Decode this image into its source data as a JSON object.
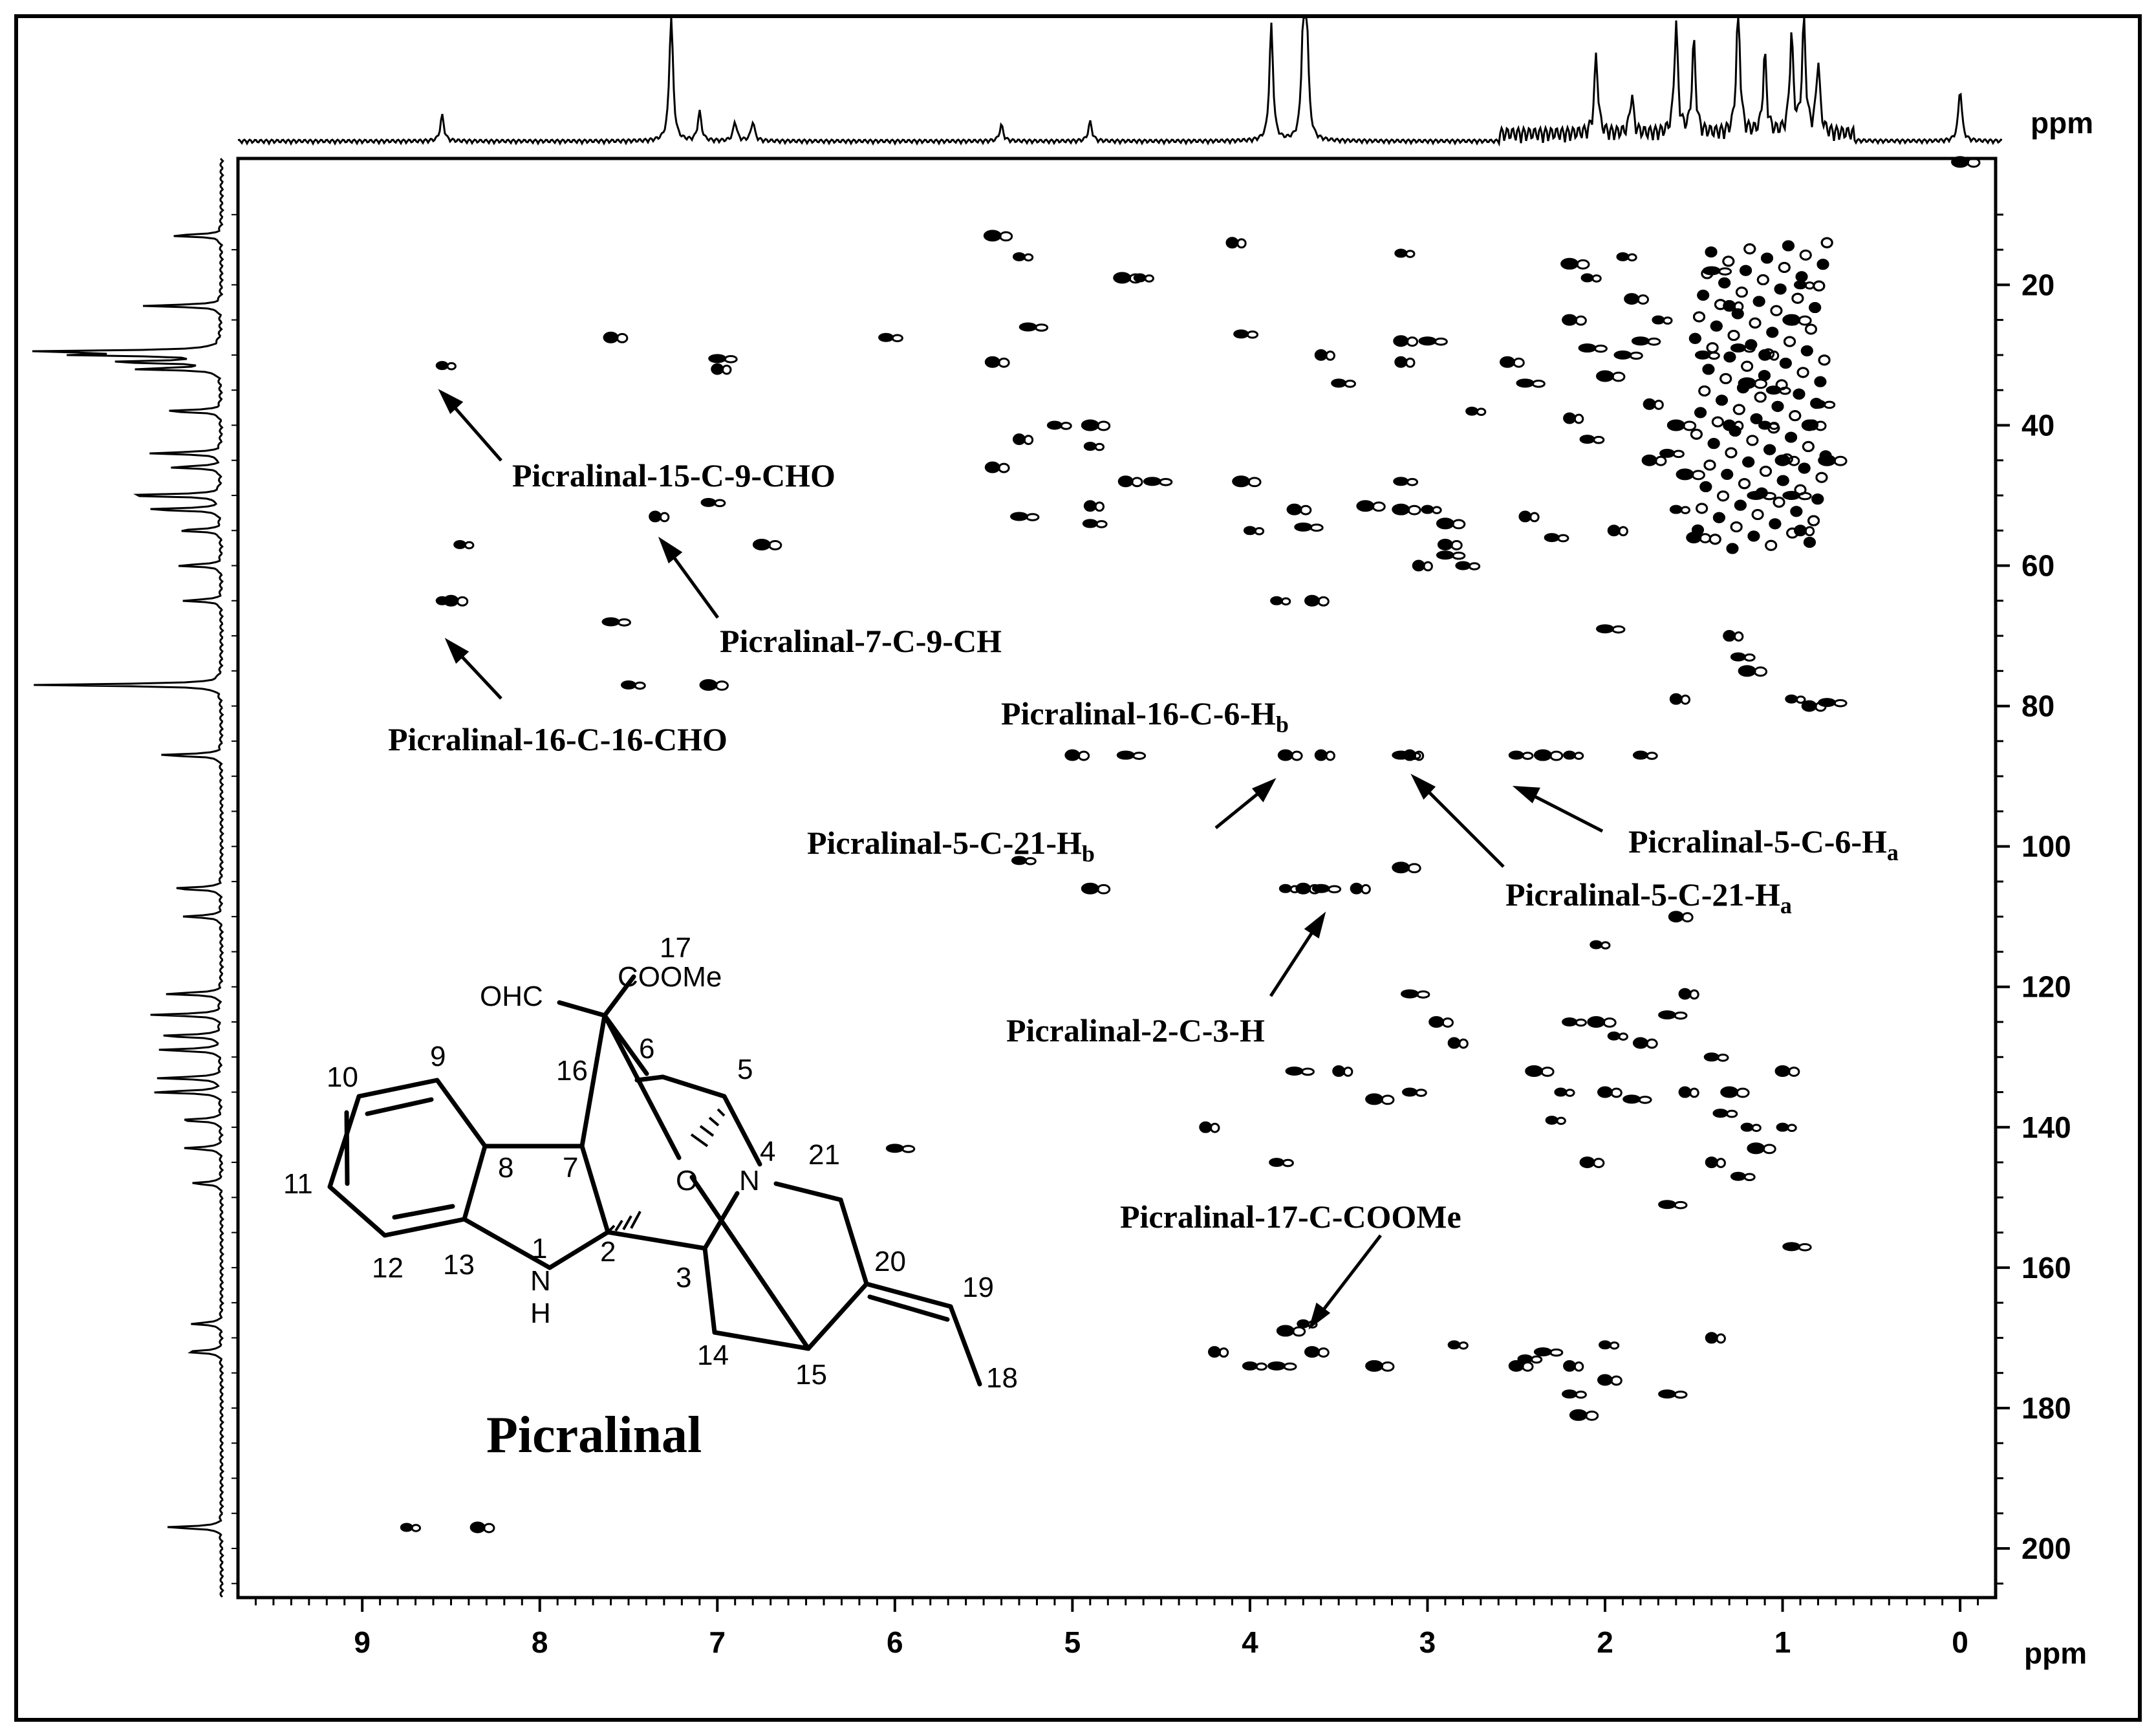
{
  "chart_data": {
    "type": "scatter",
    "description_type": "2D NMR HMBC contour spectrum",
    "x_unit": "ppm",
    "y_unit": "ppm",
    "xlim": [
      9.7,
      -0.2
    ],
    "ylim": [
      2,
      207
    ],
    "x_ticks": [
      9,
      8,
      7,
      6,
      5,
      4,
      3,
      2,
      1,
      0
    ],
    "y_ticks": [
      20,
      40,
      60,
      80,
      100,
      120,
      140,
      160,
      180,
      200
    ],
    "cross_peaks": [
      [
        8.55,
        31.5
      ],
      [
        7.6,
        27.5
      ],
      [
        7.0,
        30.5
      ],
      [
        7.0,
        32
      ],
      [
        6.05,
        27.5
      ],
      [
        5.45,
        13
      ],
      [
        5.3,
        16
      ],
      [
        5.45,
        31
      ],
      [
        5.25,
        26
      ],
      [
        5.3,
        42
      ],
      [
        5.1,
        40
      ],
      [
        4.9,
        40
      ],
      [
        4.9,
        43
      ],
      [
        5.45,
        46
      ],
      [
        5.3,
        53
      ],
      [
        4.9,
        51.5
      ],
      [
        4.9,
        54
      ],
      [
        4.72,
        19
      ],
      [
        4.62,
        19
      ],
      [
        4.7,
        48
      ],
      [
        4.55,
        48
      ],
      [
        4.1,
        14
      ],
      [
        4.05,
        27
      ],
      [
        4.05,
        48
      ],
      [
        4.0,
        55
      ],
      [
        3.75,
        52
      ],
      [
        3.7,
        54.5
      ],
      [
        3.6,
        30
      ],
      [
        3.5,
        34
      ],
      [
        3.35,
        51.5
      ],
      [
        3.15,
        15.5
      ],
      [
        3.15,
        28
      ],
      [
        3.0,
        28
      ],
      [
        3.15,
        31
      ],
      [
        3.15,
        48
      ],
      [
        3.15,
        52
      ],
      [
        3.0,
        52
      ],
      [
        2.9,
        57
      ],
      [
        2.9,
        58.5
      ],
      [
        3.05,
        60
      ],
      [
        2.8,
        60
      ],
      [
        2.9,
        54
      ],
      [
        2.75,
        38
      ],
      [
        2.55,
        31
      ],
      [
        2.45,
        34
      ],
      [
        2.45,
        53
      ],
      [
        2.3,
        56
      ],
      [
        2.2,
        17
      ],
      [
        2.1,
        19
      ],
      [
        2.2,
        25
      ],
      [
        2.1,
        29
      ],
      [
        2.2,
        39
      ],
      [
        2.1,
        42
      ],
      [
        2.0,
        33
      ],
      [
        1.9,
        16
      ],
      [
        1.85,
        22
      ],
      [
        1.8,
        28
      ],
      [
        1.75,
        37
      ],
      [
        1.65,
        44
      ],
      [
        1.55,
        47
      ],
      [
        1.6,
        52
      ],
      [
        1.5,
        56
      ],
      [
        1.4,
        18
      ],
      [
        1.3,
        23
      ],
      [
        1.25,
        29
      ],
      [
        1.2,
        34
      ],
      [
        1.1,
        40
      ],
      [
        1.0,
        45
      ],
      [
        0.95,
        50
      ],
      [
        0.9,
        55
      ],
      [
        0.8,
        37
      ],
      [
        0.75,
        45
      ],
      [
        3.85,
        65
      ],
      [
        3.65,
        65
      ],
      [
        2.0,
        69
      ],
      [
        1.3,
        70
      ],
      [
        1.25,
        73
      ],
      [
        1.2,
        75
      ],
      [
        0.95,
        79
      ],
      [
        0.85,
        80
      ],
      [
        0.75,
        79.5
      ],
      [
        1.6,
        79
      ],
      [
        7.5,
        77
      ],
      [
        7.05,
        77
      ],
      [
        8.55,
        65
      ],
      [
        8.5,
        65
      ],
      [
        7.6,
        68
      ],
      [
        7.35,
        53
      ],
      [
        7.05,
        51
      ],
      [
        6.75,
        57
      ],
      [
        8.45,
        57
      ],
      [
        3.8,
        87
      ],
      [
        3.15,
        87
      ],
      [
        3.1,
        87
      ],
      [
        2.5,
        87
      ],
      [
        2.35,
        87
      ],
      [
        2.2,
        87
      ],
      [
        5.0,
        87
      ],
      [
        4.7,
        87
      ],
      [
        3.6,
        87
      ],
      [
        1.8,
        87
      ],
      [
        4.9,
        106
      ],
      [
        3.8,
        106
      ],
      [
        3.7,
        106
      ],
      [
        3.6,
        106
      ],
      [
        3.4,
        106
      ],
      [
        5.3,
        102
      ],
      [
        3.15,
        103
      ],
      [
        2.05,
        114
      ],
      [
        1.6,
        110
      ],
      [
        3.1,
        121
      ],
      [
        2.85,
        128
      ],
      [
        2.2,
        125
      ],
      [
        2.05,
        125
      ],
      [
        1.95,
        127
      ],
      [
        1.8,
        128
      ],
      [
        1.65,
        124
      ],
      [
        1.55,
        121
      ],
      [
        1.4,
        130
      ],
      [
        1.3,
        135
      ],
      [
        1.2,
        140
      ],
      [
        2.95,
        125
      ],
      [
        3.75,
        132
      ],
      [
        3.5,
        132
      ],
      [
        3.1,
        135
      ],
      [
        2.4,
        132
      ],
      [
        2.25,
        135
      ],
      [
        2.0,
        135
      ],
      [
        1.85,
        136
      ],
      [
        1.55,
        135
      ],
      [
        1.35,
        138
      ],
      [
        1.15,
        143
      ],
      [
        1.0,
        140
      ],
      [
        1.0,
        132
      ],
      [
        0.95,
        157
      ],
      [
        4.25,
        140
      ],
      [
        3.85,
        145
      ],
      [
        3.3,
        136
      ],
      [
        2.3,
        139
      ],
      [
        2.1,
        145
      ],
      [
        1.65,
        151
      ],
      [
        1.4,
        145
      ],
      [
        1.25,
        147
      ],
      [
        3.8,
        169
      ],
      [
        3.7,
        168
      ],
      [
        3.65,
        172
      ],
      [
        3.85,
        174
      ],
      [
        4.2,
        172
      ],
      [
        4.0,
        174
      ],
      [
        3.3,
        174
      ],
      [
        2.85,
        171
      ],
      [
        2.5,
        174
      ],
      [
        2.35,
        172
      ],
      [
        2.2,
        174
      ],
      [
        2.2,
        178
      ],
      [
        2.15,
        181
      ],
      [
        2.0,
        171
      ],
      [
        2.0,
        176
      ],
      [
        1.65,
        178
      ],
      [
        1.4,
        170
      ],
      [
        2.45,
        173
      ],
      [
        0.0,
        2.5
      ],
      [
        8.75,
        197
      ],
      [
        8.35,
        197
      ],
      [
        6.0,
        143
      ],
      [
        1.1,
        30
      ],
      [
        1.05,
        35
      ],
      [
        0.95,
        25
      ],
      [
        0.9,
        20
      ],
      [
        0.85,
        40
      ],
      [
        1.15,
        50
      ],
      [
        1.3,
        40
      ],
      [
        1.45,
        30
      ],
      [
        1.6,
        40
      ],
      [
        1.7,
        25
      ],
      [
        1.75,
        45
      ],
      [
        1.9,
        30
      ],
      [
        1.95,
        55
      ]
    ],
    "annotations": [
      {
        "label": "Picralinal-15-C-9-CHO",
        "peak": [
          8.55,
          31.5
        ]
      },
      {
        "label": "Picralinal-7-C-9-CH",
        "peak": [
          7.35,
          53
        ]
      },
      {
        "label": "Picralinal-16-C-16-CHO",
        "peak": [
          8.5,
          65
        ]
      },
      {
        "label": "Picralinal-16-C-6-H",
        "sub": "b",
        "peak": [
          3.15,
          87
        ]
      },
      {
        "label": "Picralinal-5-C-21-H",
        "sub": "b",
        "peak": [
          3.8,
          87
        ]
      },
      {
        "label": "Picralinal-5-C-21-H",
        "sub": "a",
        "peak": [
          3.1,
          87
        ]
      },
      {
        "label": "Picralinal-5-C-6-H",
        "sub": "a",
        "peak": [
          2.5,
          87
        ]
      },
      {
        "label": "Picralinal-2-C-3-H",
        "peak": [
          3.8,
          106
        ]
      },
      {
        "label": "Picralinal-17-C-COOMe",
        "peak": [
          3.75,
          168
        ]
      }
    ],
    "proton_projection_peaks": [
      8.55,
      7.26,
      7.1,
      6.9,
      6.8,
      5.4,
      4.9,
      3.88,
      3.7,
      3.68,
      2.05,
      1.85,
      1.6,
      1.5,
      1.25,
      1.1,
      0.95,
      0.88,
      0.8,
      0.0
    ],
    "carbon_projection_peaks": [
      13,
      23,
      29.5,
      30,
      31,
      32,
      38,
      44,
      46,
      50,
      52,
      55,
      60,
      65,
      77,
      87,
      106,
      110,
      121,
      124,
      127,
      129,
      133,
      135,
      139,
      143,
      148,
      168,
      172,
      197
    ]
  },
  "labels": {
    "x_unit": "ppm",
    "y_unit": "ppm",
    "ann": {
      "a1": "Picralinal-15-C-9-CHO",
      "a2": "Picralinal-7-C-9-CH",
      "a3": "Picralinal-16-C-16-CHO",
      "a4_main": "Picralinal-16-C-6-H",
      "a4_sub": "b",
      "a5_main": "Picralinal-5-C-21-H",
      "a5_sub": "b",
      "a6_main": "Picralinal-5-C-21-H",
      "a6_sub": "a",
      "a7_main": "Picralinal-5-C-6-H",
      "a7_sub": "a",
      "a8": "Picralinal-2-C-3-H",
      "a9": "Picralinal-17-C-COOMe"
    },
    "molecule": {
      "title": "Picralinal",
      "ohc": "OHC",
      "coome": "COOMe",
      "n17": "17",
      "n16": "16",
      "n6": "6",
      "n5": "5",
      "n9": "9",
      "n10": "10",
      "n11": "11",
      "n12": "12",
      "n13": "13",
      "n8": "8",
      "n7": "7",
      "n1": "1",
      "nH": "H",
      "nN1": "N",
      "n2": "2",
      "n3": "3",
      "n4": "4",
      "nN4": "N",
      "nO": "O",
      "n21": "21",
      "n20": "20",
      "n19": "19",
      "n18": "18",
      "n14": "14",
      "n15": "15"
    }
  }
}
